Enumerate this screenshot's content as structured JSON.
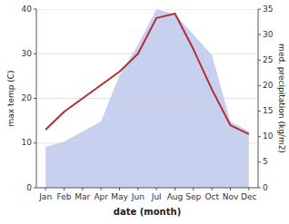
{
  "chart_data": {
    "type": "line",
    "xlabel": "date (month)",
    "ylabel": "max temp (C)",
    "y2label": "med. precipitation (kg/m2)",
    "categories": [
      "Jan",
      "Feb",
      "Mar",
      "Apr",
      "May",
      "Jun",
      "Jul",
      "Aug",
      "Sep",
      "Oct",
      "Nov",
      "Dec"
    ],
    "series": [
      {
        "type": "area",
        "axis": "y2",
        "color": "#c8d0f0",
        "values": [
          8,
          9,
          11,
          13,
          22,
          28,
          35,
          34,
          30,
          26,
          13,
          11
        ]
      },
      {
        "type": "line",
        "color": "#b03030",
        "values": [
          13,
          17,
          20,
          23,
          26,
          30,
          38,
          39,
          31,
          22,
          14,
          12
        ]
      }
    ],
    "ylim": [
      0,
      40
    ],
    "yticks": [
      0,
      10,
      20,
      30,
      40
    ],
    "y2lim": [
      0,
      35
    ],
    "y2ticks": [
      0,
      5,
      10,
      15,
      20,
      25,
      30,
      35
    ],
    "grid": true
  }
}
